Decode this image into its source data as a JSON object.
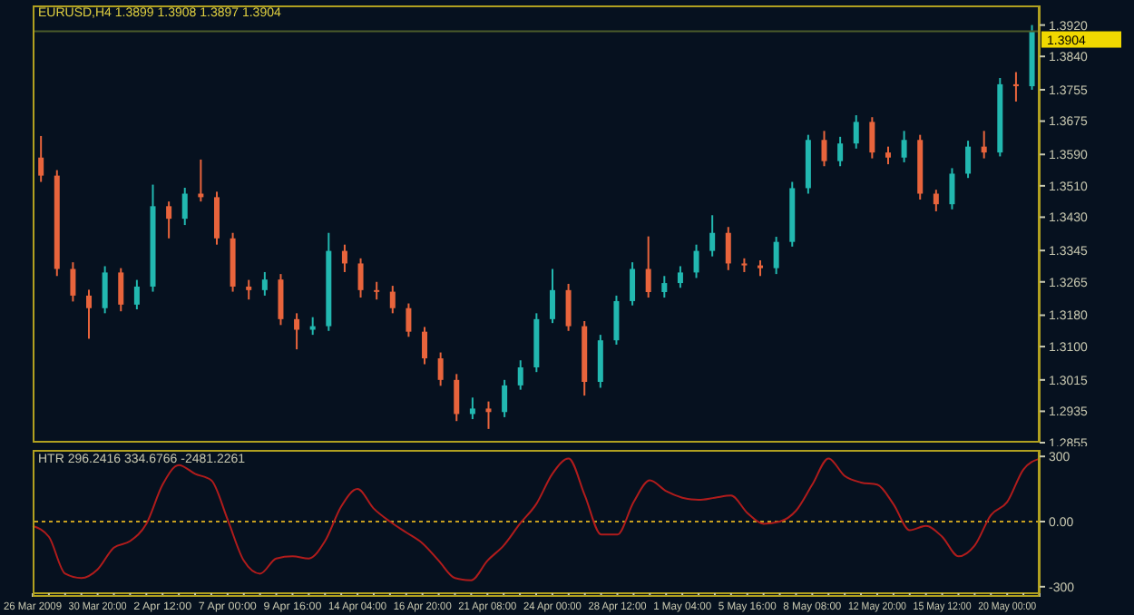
{
  "chart_data": [
    {
      "type": "candlestick",
      "title": "EURUSD,H4  1.3899 1.3908 1.3897 1.3904",
      "categories": [
        null,
        null,
        null,
        null,
        null,
        null,
        null,
        null,
        null,
        null,
        null,
        null,
        null,
        null,
        null,
        null,
        null,
        null,
        null,
        null,
        null,
        null,
        null,
        null,
        null,
        null,
        null,
        null,
        null,
        null,
        null,
        null,
        null,
        null,
        null,
        null,
        null,
        null,
        null,
        null,
        null,
        null,
        null,
        null,
        null,
        null,
        null,
        null,
        null,
        null,
        null,
        null,
        null,
        null,
        null,
        null,
        null,
        null,
        null,
        null,
        null,
        null,
        null
      ],
      "ohlc": [
        [
          1.3582,
          1.3637,
          1.352,
          1.3536
        ],
        [
          1.3536,
          1.355,
          1.328,
          1.3298
        ],
        [
          1.3298,
          1.3315,
          1.3215,
          1.323
        ],
        [
          1.323,
          1.3245,
          1.312,
          1.3198
        ],
        [
          1.3198,
          1.3305,
          1.3185,
          1.3289
        ],
        [
          1.3289,
          1.33,
          1.319,
          1.3207
        ],
        [
          1.3207,
          1.327,
          1.3195,
          1.3253
        ],
        [
          1.3253,
          1.3513,
          1.324,
          1.3458
        ],
        [
          1.3458,
          1.347,
          1.3376,
          1.3426
        ],
        [
          1.3426,
          1.3505,
          1.341,
          1.349
        ],
        [
          1.349,
          1.3577,
          1.347,
          1.3481
        ],
        [
          1.3481,
          1.3495,
          1.336,
          1.3376
        ],
        [
          1.3376,
          1.339,
          1.324,
          1.3253
        ],
        [
          1.3253,
          1.327,
          1.322,
          1.3244
        ],
        [
          1.3244,
          1.329,
          1.323,
          1.3271
        ],
        [
          1.3271,
          1.3285,
          1.3155,
          1.317
        ],
        [
          1.317,
          1.3185,
          1.3093,
          1.3143
        ],
        [
          1.3143,
          1.3175,
          1.313,
          1.3152
        ],
        [
          1.3152,
          1.339,
          1.314,
          1.3344
        ],
        [
          1.3344,
          1.336,
          1.329,
          1.3312
        ],
        [
          1.3312,
          1.3325,
          1.3225,
          1.3244
        ],
        [
          1.3244,
          1.3265,
          1.322,
          1.324
        ],
        [
          1.324,
          1.3255,
          1.3185,
          1.3198
        ],
        [
          1.3198,
          1.321,
          1.3125,
          1.3138
        ],
        [
          1.3138,
          1.315,
          1.3055,
          1.307
        ],
        [
          1.307,
          1.3085,
          1.3,
          1.3015
        ],
        [
          1.3015,
          1.303,
          1.291,
          1.2928
        ],
        [
          1.2928,
          1.297,
          1.2915,
          1.2942
        ],
        [
          1.2942,
          1.296,
          1.289,
          1.2933
        ],
        [
          1.2933,
          1.3015,
          1.292,
          1.3001
        ],
        [
          1.3001,
          1.3065,
          1.299,
          1.3047
        ],
        [
          1.3047,
          1.3185,
          1.3035,
          1.317
        ],
        [
          1.317,
          1.3298,
          1.316,
          1.3244
        ],
        [
          1.3244,
          1.326,
          1.314,
          1.3152
        ],
        [
          1.3152,
          1.3165,
          1.2975,
          1.301
        ],
        [
          1.301,
          1.313,
          1.2995,
          1.3116
        ],
        [
          1.3116,
          1.323,
          1.3105,
          1.3216
        ],
        [
          1.3216,
          1.3315,
          1.3205,
          1.3298
        ],
        [
          1.3298,
          1.3381,
          1.3225,
          1.3239
        ],
        [
          1.3239,
          1.328,
          1.3225,
          1.3262
        ],
        [
          1.3262,
          1.3305,
          1.325,
          1.3289
        ],
        [
          1.3289,
          1.336,
          1.3275,
          1.3344
        ],
        [
          1.3344,
          1.3435,
          1.333,
          1.339
        ],
        [
          1.339,
          1.3405,
          1.3295,
          1.3312
        ],
        [
          1.3312,
          1.3325,
          1.329,
          1.3307
        ],
        [
          1.3307,
          1.332,
          1.328,
          1.33
        ],
        [
          1.33,
          1.338,
          1.3285,
          1.3367
        ],
        [
          1.3367,
          1.352,
          1.3355,
          1.3504
        ],
        [
          1.3504,
          1.364,
          1.349,
          1.3627
        ],
        [
          1.3627,
          1.365,
          1.356,
          1.3573
        ],
        [
          1.3573,
          1.3635,
          1.356,
          1.3618
        ],
        [
          1.3618,
          1.369,
          1.3605,
          1.3673
        ],
        [
          1.3673,
          1.3685,
          1.358,
          1.3595
        ],
        [
          1.3595,
          1.361,
          1.3565,
          1.3582
        ],
        [
          1.3582,
          1.365,
          1.357,
          1.3627
        ],
        [
          1.3627,
          1.364,
          1.3475,
          1.349
        ],
        [
          1.349,
          1.35,
          1.3445,
          1.3463
        ],
        [
          1.3463,
          1.3555,
          1.345,
          1.3541
        ],
        [
          1.3541,
          1.3625,
          1.353,
          1.361
        ],
        [
          1.361,
          1.365,
          1.358,
          1.3595
        ],
        [
          1.3595,
          1.3785,
          1.3585,
          1.3769
        ],
        [
          1.3769,
          1.38,
          1.3725,
          1.3764
        ],
        [
          1.3764,
          1.392,
          1.3755,
          1.3904
        ]
      ],
      "colors": [
        "#e8643c",
        "#e8643c",
        "#e8643c",
        "#e8643c",
        "#22b8b0",
        "#e8643c",
        "#22b8b0",
        "#22b8b0",
        "#e8643c",
        "#22b8b0",
        "#e8643c",
        "#e8643c",
        "#e8643c",
        "#e8643c",
        "#22b8b0",
        "#e8643c",
        "#e8643c",
        "#22b8b0",
        "#22b8b0",
        "#e8643c",
        "#e8643c",
        "#e8643c",
        "#e8643c",
        "#e8643c",
        "#e8643c",
        "#e8643c",
        "#e8643c",
        "#22b8b0",
        "#e8643c",
        "#22b8b0",
        "#22b8b0",
        "#22b8b0",
        "#22b8b0",
        "#e8643c",
        "#e8643c",
        "#22b8b0",
        "#22b8b0",
        "#22b8b0",
        "#e8643c",
        "#22b8b0",
        "#22b8b0",
        "#22b8b0",
        "#22b8b0",
        "#e8643c",
        "#e8643c",
        "#e8643c",
        "#22b8b0",
        "#22b8b0",
        "#22b8b0",
        "#e8643c",
        "#22b8b0",
        "#22b8b0",
        "#e8643c",
        "#e8643c",
        "#22b8b0",
        "#e8643c",
        "#e8643c",
        "#22b8b0",
        "#22b8b0",
        "#e8643c",
        "#22b8b0",
        "#e8643c",
        "#22b8b0"
      ],
      "ylim": [
        1.2855,
        1.397
      ],
      "yticks": [
        1.2855,
        1.2935,
        1.3015,
        {
          "value": 1.31,
          "label": "1.3100"
        },
        {
          "value": 1.318,
          "label": "1.3180"
        },
        1.3265,
        1.3345,
        {
          "value": 1.343,
          "label": "1.3430"
        },
        {
          "value": 1.351,
          "label": "1.3510"
        },
        {
          "value": 1.359,
          "label": "1.3590"
        },
        1.3675,
        1.3755,
        {
          "value": 1.384,
          "label": "1.3840"
        },
        {
          "value": 1.392,
          "label": "1.3920"
        }
      ],
      "ref_lines": [
        {
          "axis": "y",
          "value": 1.3904,
          "label": "1.3904",
          "color": "#4a5a2a"
        }
      ],
      "tick_labels": "y"
    },
    {
      "type": "line",
      "title": "HTR 296.2416 334.6766 -2481.2261",
      "categories": [
        "26 Mar 2009",
        null,
        null,
        null,
        "30 Mar 20:00",
        null,
        null,
        null,
        "2 Apr 12:00",
        null,
        null,
        null,
        "7 Apr 00:00",
        null,
        null,
        null,
        "9 Apr 16:00",
        null,
        null,
        null,
        "14 Apr 04:00",
        null,
        null,
        null,
        "16 Apr 20:00",
        null,
        null,
        null,
        "21 Apr 08:00",
        null,
        null,
        null,
        "24 Apr 00:00",
        null,
        null,
        null,
        "28 Apr 12:00",
        null,
        null,
        null,
        "1 May 04:00",
        null,
        null,
        null,
        "5 May 16:00",
        null,
        null,
        null,
        "8 May 08:00",
        null,
        null,
        null,
        "12 May 20:00",
        null,
        null,
        null,
        "15 May 12:00",
        null,
        null,
        null,
        "20 May 00:00",
        null,
        null
      ],
      "series": [
        {
          "color": "#b01c1c",
          "values": [
            -20,
            -70,
            -240,
            -260,
            -220,
            -120,
            -90,
            -10,
            170,
            260,
            220,
            190,
            10,
            -180,
            -240,
            -170,
            -160,
            -170,
            -90,
            70,
            150,
            60,
            0,
            -50,
            -100,
            -180,
            -260,
            -270,
            -180,
            -110,
            -10,
            80,
            220,
            290,
            120,
            -60,
            -60,
            90,
            190,
            140,
            110,
            100,
            110,
            120,
            40,
            -10,
            0,
            50,
            170,
            290,
            210,
            180,
            170,
            80,
            -40,
            -20,
            -70,
            -160,
            -110,
            30,
            90,
            240,
            290
          ]
        }
      ],
      "ylim": [
        -330,
        330
      ],
      "yticks": [
        -300,
        {
          "value": 0,
          "label": "0.00"
        },
        300
      ],
      "ref_lines": [
        {
          "axis": "y",
          "value": 0,
          "color": "#c8a020",
          "line_style": "dotted"
        }
      ],
      "marker": "none",
      "line_style": "solid"
    }
  ]
}
